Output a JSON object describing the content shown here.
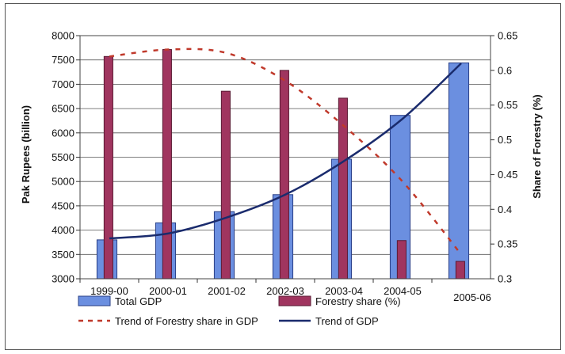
{
  "chart_data": {
    "type": "bar",
    "categories": [
      "1999-00",
      "2000-01",
      "2001-02",
      "2002-03",
      "2003-04",
      "2004-05",
      "2005-06"
    ],
    "series": [
      {
        "name": "Total GDP",
        "axis": "left",
        "kind": "bar",
        "color": "#6b8fe0",
        "values": [
          3800,
          4150,
          4380,
          4730,
          5460,
          6360,
          7440
        ]
      },
      {
        "name": "Forestry share (%)",
        "axis": "right",
        "kind": "bar",
        "color": "#a0355f",
        "values": [
          0.62,
          0.63,
          0.57,
          0.6,
          0.56,
          0.355,
          0.325
        ]
      },
      {
        "name": "Trend of Forestry share in GDP",
        "axis": "right",
        "kind": "trend",
        "style": "dashed",
        "color": "#c0392b",
        "values": [
          0.62,
          0.63,
          0.625,
          0.585,
          0.52,
          0.44,
          0.335
        ]
      },
      {
        "name": "Trend of GDP",
        "axis": "left",
        "kind": "trend",
        "style": "solid",
        "color": "#1a2b6d",
        "values": [
          3830,
          3930,
          4260,
          4730,
          5420,
          6290,
          7430
        ]
      }
    ],
    "left_axis": {
      "label": "Pak Rupees (billion)",
      "min": 3000,
      "max": 8000,
      "ticks": [
        "3000",
        "3500",
        "4000",
        "4500",
        "5000",
        "5500",
        "6000",
        "6500",
        "7000",
        "7500",
        "8000"
      ]
    },
    "right_axis": {
      "label": "Share of Forestry (%)",
      "min": 0.3,
      "max": 0.65,
      "ticks": [
        "0.3",
        "0.35",
        "0.4",
        "0.45",
        "0.5",
        "0.55",
        "0.6",
        "0.65"
      ]
    },
    "grid": true,
    "legend": "bottom"
  }
}
